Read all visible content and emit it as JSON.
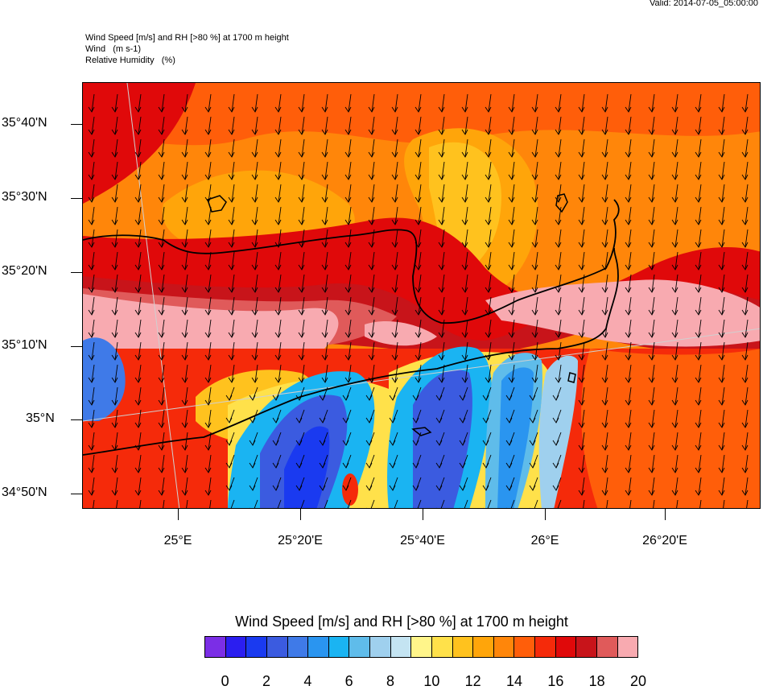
{
  "valid_time": "Valid: 2014-07-05_05:00:00",
  "header": {
    "line1": "Wind Speed [m/s] and RH [>80 %] at 1700 m height",
    "line2": "Wind   (m s-1)",
    "line3": "Relative Humidity   (%)"
  },
  "map": {
    "lat_labels": [
      "35°40'N",
      "35°30'N",
      "35°20'N",
      "35°10'N",
      "35°N",
      "34°50'N"
    ],
    "lon_labels": [
      "25°E",
      "25°20'E",
      "25°40'E",
      "26°E",
      "26°20'E"
    ],
    "coastline_color": "#000000",
    "graticule_color": "#d0d0d0",
    "wind_direction": "southward (north wind)"
  },
  "colorbar": {
    "title": "Wind Speed [m/s] and RH [>80 %] at 1700 m height",
    "colors": [
      "#7b2ee6",
      "#2b1ef0",
      "#1a3af0",
      "#3b5be0",
      "#3f7ae8",
      "#2a95f0",
      "#1ab4f2",
      "#5fbcea",
      "#9fd0ee",
      "#c4e4f2",
      "#fff58a",
      "#ffe14a",
      "#ffc21e",
      "#ffa50a",
      "#ff860a",
      "#ff5e0a",
      "#f52a0a",
      "#e0090a",
      "#c8141a",
      "#e05a5a",
      "#f8aab0"
    ],
    "labels": [
      "0",
      "2",
      "4",
      "6",
      "8",
      "10",
      "12",
      "14",
      "16",
      "18",
      "20"
    ]
  }
}
